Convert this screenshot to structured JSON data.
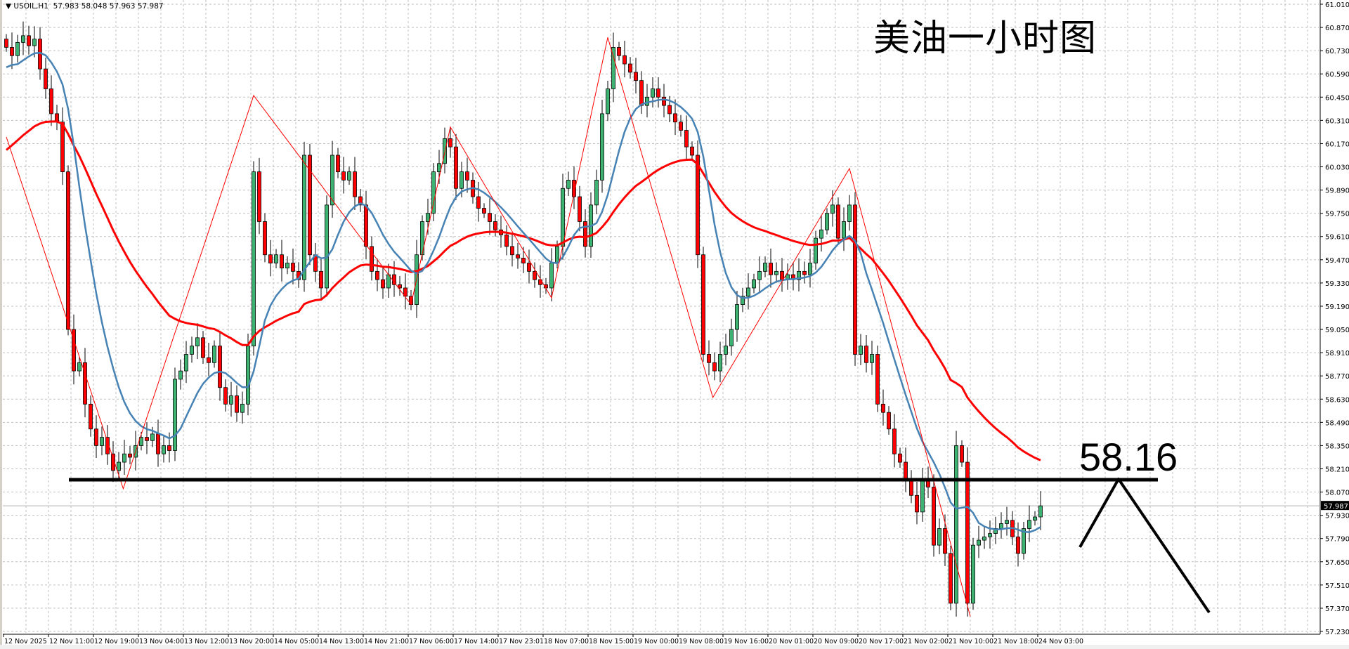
{
  "header": {
    "symbol": "USOIL,H1",
    "ohlc_text": "57.983 58.048 57.963 57.987"
  },
  "title": "美油一小时图",
  "level_label": "58.16",
  "colors": {
    "bull": "#3cb371",
    "bear": "#ff0000",
    "ma_fast": "#4682b4",
    "ma_slow": "#ff0000",
    "zigzag": "#ff0000",
    "grid": "#c0c0c0",
    "level_line": "#000000"
  },
  "chart_data": {
    "type": "candlestick",
    "timeframe": "H1",
    "ylim": [
      57.23,
      61.01
    ],
    "yticks": [
      "61.010",
      "60.870",
      "60.730",
      "60.590",
      "60.450",
      "60.310",
      "60.170",
      "60.030",
      "59.890",
      "59.750",
      "59.610",
      "59.470",
      "59.330",
      "59.190",
      "59.050",
      "58.910",
      "58.770",
      "58.630",
      "58.490",
      "58.350",
      "58.210",
      "58.070",
      "57.930",
      "57.790",
      "57.650",
      "57.510",
      "57.370",
      "57.230"
    ],
    "xticks": [
      "12 Nov 2025",
      "12 Nov 11:00",
      "12 Nov 19:00",
      "13 Nov 04:00",
      "13 Nov 12:00",
      "13 Nov 20:00",
      "14 Nov 05:00",
      "14 Nov 13:00",
      "14 Nov 21:00",
      "17 Nov 06:00",
      "17 Nov 14:00",
      "17 Nov 23:01",
      "18 Nov 07:00",
      "18 Nov 15:00",
      "19 Nov 00:00",
      "19 Nov 08:00",
      "19 Nov 16:00",
      "20 Nov 01:00",
      "20 Nov 09:00",
      "20 Nov 17:00",
      "21 Nov 02:00",
      "21 Nov 10:00",
      "21 Nov 18:00",
      "24 Nov 03:00"
    ],
    "current_price": "57.987",
    "closes": [
      60.75,
      60.7,
      60.78,
      60.82,
      60.76,
      60.8,
      60.62,
      60.5,
      60.35,
      60.3,
      60.0,
      59.05,
      58.8,
      58.85,
      58.6,
      58.45,
      58.35,
      58.4,
      58.3,
      58.2,
      58.25,
      58.3,
      58.28,
      58.35,
      58.4,
      58.38,
      58.42,
      58.3,
      58.35,
      58.32,
      58.75,
      58.8,
      58.9,
      58.95,
      59.0,
      58.88,
      58.85,
      58.95,
      58.7,
      58.6,
      58.65,
      58.55,
      58.6,
      58.95,
      60.0,
      59.7,
      59.5,
      59.45,
      59.5,
      59.42,
      59.45,
      59.4,
      59.35,
      60.1,
      59.5,
      59.4,
      59.3,
      59.8,
      60.1,
      60.0,
      59.95,
      60.0,
      59.85,
      59.8,
      59.55,
      59.4,
      59.35,
      59.3,
      59.38,
      59.32,
      59.3,
      59.25,
      59.2,
      59.5,
      59.7,
      59.75,
      60.0,
      60.05,
      60.2,
      60.15,
      59.9,
      60.0,
      59.95,
      59.85,
      59.78,
      59.75,
      59.7,
      59.65,
      59.62,
      59.55,
      59.5,
      59.48,
      59.45,
      59.4,
      59.35,
      59.32,
      59.3,
      59.45,
      59.55,
      59.9,
      59.95,
      59.85,
      59.7,
      59.55,
      59.8,
      59.95,
      60.35,
      60.5,
      60.75,
      60.7,
      60.65,
      60.6,
      60.55,
      60.4,
      60.45,
      60.5,
      60.45,
      60.4,
      60.35,
      60.3,
      60.25,
      60.15,
      60.1,
      59.5,
      58.9,
      58.85,
      58.8,
      58.9,
      58.95,
      59.05,
      59.2,
      59.25,
      59.3,
      59.35,
      59.4,
      59.45,
      59.38,
      59.4,
      59.35,
      59.38,
      59.35,
      59.4,
      59.38,
      59.45,
      59.6,
      59.65,
      59.75,
      59.8,
      59.6,
      59.7,
      59.8,
      58.9,
      58.95,
      58.85,
      58.9,
      58.6,
      58.55,
      58.45,
      58.3,
      58.25,
      58.15,
      58.05,
      57.95,
      58.15,
      58.1,
      57.75,
      57.85,
      57.7,
      57.4,
      58.35,
      58.25,
      57.4,
      57.75,
      57.78,
      57.8,
      57.82,
      57.85,
      57.88,
      57.9,
      57.8,
      57.7,
      57.85,
      57.9,
      57.92,
      57.987
    ],
    "zigzag": [
      [
        0,
        60.21
      ],
      [
        20.8,
        58.09
      ],
      [
        44,
        60.46
      ],
      [
        72,
        59.2
      ],
      [
        79,
        60.27
      ],
      [
        97,
        59.24
      ],
      [
        107,
        60.81
      ],
      [
        125.7,
        58.64
      ],
      [
        150,
        60.02
      ],
      [
        171.5,
        57.32
      ]
    ],
    "horizontal_level": 58.16
  }
}
